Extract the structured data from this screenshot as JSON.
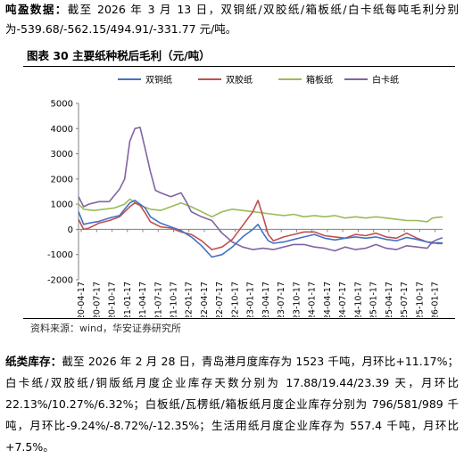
{
  "paragraph1": {
    "lead": "吨盈数据：",
    "body": "截至 2026 年 3 月 13 日，双铜纸/双胶纸/箱板纸/白卡纸每吨毛利分别为-539.68/-562.15/494.91/-331.77 元/吨。"
  },
  "figure_title": "图表 30 主要纸种税后毛利（元/吨）",
  "source_text": "资料来源：wind，华安证券研究所",
  "paragraph2": {
    "lead": "纸类库存：",
    "body": "截至 2026 年 2 月 28 日，青岛港月度库存为 1523 千吨，月环比+11.17%；白卡纸/双胶纸/铜版纸月度企业库存天数分别为 17.88/19.44/23.39 天，月环比 22.13%/10.27%/6.32%；白板纸/瓦楞纸/箱板纸月度企业库存分别为 796/581/989 千吨，月环比-9.24%/-8.72%/-12.35%；生活用纸月度企业库存为 557.4 千吨，月环比+7.5%。"
  },
  "chart_data": {
    "type": "line",
    "title": "",
    "xlabel": "",
    "ylabel": "",
    "ylim": [
      -2000,
      5000
    ],
    "yticks": [
      -2000,
      -1000,
      0,
      1000,
      2000,
      3000,
      4000,
      5000
    ],
    "xlim": [
      "2020-04",
      "2026-03"
    ],
    "xticks": [
      "2020-04-17",
      "2020-07-17",
      "2020-10-17",
      "2021-01-17",
      "2021-04-17",
      "2021-07-17",
      "2021-10-17",
      "2022-01-17",
      "2022-04-17",
      "2022-07-17",
      "2022-10-17",
      "2023-01-17",
      "2023-04-17",
      "2023-07-17",
      "2023-10-17",
      "2024-01-17",
      "2024-04-17",
      "2024-07-17",
      "2024-10-17",
      "2025-01-17",
      "2025-04-17",
      "2025-07-17",
      "2025-10-17",
      "2026-01-17"
    ],
    "legend_position": "top",
    "series": [
      {
        "name": "双铜纸",
        "color": "#4472C4",
        "x": [
          "2020-04",
          "2020-05",
          "2020-06",
          "2020-08",
          "2020-10",
          "2020-12",
          "2021-01",
          "2021-02",
          "2021-03",
          "2021-04",
          "2021-05",
          "2021-06",
          "2021-08",
          "2021-10",
          "2021-12",
          "2022-02",
          "2022-04",
          "2022-06",
          "2022-08",
          "2022-10",
          "2022-12",
          "2023-02",
          "2023-03",
          "2023-04",
          "2023-05",
          "2023-06",
          "2023-08",
          "2023-10",
          "2023-12",
          "2024-02",
          "2024-04",
          "2024-06",
          "2024-08",
          "2024-10",
          "2024-12",
          "2025-02",
          "2025-04",
          "2025-06",
          "2025-08",
          "2025-10",
          "2025-12",
          "2026-01",
          "2026-02",
          "2026-03"
        ],
        "y": [
          700,
          200,
          250,
          320,
          450,
          550,
          800,
          1050,
          1150,
          1000,
          850,
          500,
          250,
          100,
          -50,
          -300,
          -650,
          -1100,
          -1000,
          -700,
          -300,
          0,
          200,
          -150,
          -450,
          -550,
          -500,
          -400,
          -300,
          -200,
          -350,
          -420,
          -350,
          -300,
          -350,
          -300,
          -400,
          -450,
          -320,
          -400,
          -500,
          -550,
          -530,
          -540
        ]
      },
      {
        "name": "双胶纸",
        "color": "#C0504D",
        "x": [
          "2020-04",
          "2020-05",
          "2020-06",
          "2020-08",
          "2020-10",
          "2020-12",
          "2021-01",
          "2021-02",
          "2021-03",
          "2021-04",
          "2021-05",
          "2021-06",
          "2021-08",
          "2021-10",
          "2021-12",
          "2022-02",
          "2022-04",
          "2022-06",
          "2022-08",
          "2022-10",
          "2022-12",
          "2023-02",
          "2023-03",
          "2023-04",
          "2023-05",
          "2023-06",
          "2023-08",
          "2023-10",
          "2023-12",
          "2024-02",
          "2024-04",
          "2024-06",
          "2024-08",
          "2024-10",
          "2024-12",
          "2025-02",
          "2025-04",
          "2025-06",
          "2025-08",
          "2025-10",
          "2025-12",
          "2026-01",
          "2026-02",
          "2026-03"
        ],
        "y": [
          400,
          0,
          50,
          250,
          350,
          500,
          700,
          900,
          1050,
          950,
          650,
          300,
          100,
          50,
          -100,
          -200,
          -450,
          -800,
          -700,
          -400,
          150,
          700,
          1150,
          500,
          -200,
          -450,
          -300,
          -200,
          -100,
          -100,
          -250,
          -300,
          -350,
          -200,
          -250,
          -150,
          -300,
          -350,
          -150,
          -350,
          -500,
          -520,
          -560,
          -560
        ]
      },
      {
        "name": "箱板纸",
        "color": "#9BBB59",
        "x": [
          "2020-04",
          "2020-05",
          "2020-07",
          "2020-09",
          "2020-11",
          "2021-01",
          "2021-02",
          "2021-04",
          "2021-06",
          "2021-08",
          "2021-10",
          "2021-12",
          "2022-02",
          "2022-04",
          "2022-06",
          "2022-08",
          "2022-10",
          "2022-12",
          "2023-02",
          "2023-04",
          "2023-06",
          "2023-08",
          "2023-10",
          "2023-12",
          "2024-02",
          "2024-04",
          "2024-06",
          "2024-08",
          "2024-10",
          "2024-12",
          "2025-02",
          "2025-04",
          "2025-06",
          "2025-08",
          "2025-10",
          "2025-12",
          "2026-01",
          "2026-02",
          "2026-03"
        ],
        "y": [
          1000,
          800,
          750,
          800,
          850,
          1000,
          1200,
          950,
          800,
          750,
          900,
          1050,
          900,
          700,
          500,
          700,
          800,
          750,
          700,
          650,
          600,
          550,
          600,
          500,
          550,
          500,
          550,
          450,
          500,
          450,
          500,
          450,
          400,
          350,
          350,
          300,
          450,
          480,
          495
        ]
      },
      {
        "name": "白卡纸",
        "color": "#8064A2",
        "x": [
          "2020-04",
          "2020-05",
          "2020-06",
          "2020-08",
          "2020-10",
          "2020-12",
          "2021-01",
          "2021-02",
          "2021-03",
          "2021-04",
          "2021-05",
          "2021-06",
          "2021-07",
          "2021-08",
          "2021-10",
          "2021-12",
          "2022-01",
          "2022-02",
          "2022-04",
          "2022-06",
          "2022-08",
          "2022-10",
          "2022-12",
          "2023-02",
          "2023-04",
          "2023-06",
          "2023-08",
          "2023-10",
          "2023-12",
          "2024-02",
          "2024-04",
          "2024-06",
          "2024-08",
          "2024-10",
          "2024-12",
          "2025-02",
          "2025-04",
          "2025-06",
          "2025-08",
          "2025-10",
          "2025-12",
          "2026-01",
          "2026-02",
          "2026-03"
        ],
        "y": [
          1300,
          900,
          1000,
          1100,
          1100,
          1600,
          2000,
          3500,
          4000,
          4050,
          3200,
          2300,
          1550,
          1450,
          1300,
          1450,
          1100,
          700,
          500,
          350,
          -150,
          -500,
          -700,
          -800,
          -750,
          -800,
          -700,
          -600,
          -600,
          -700,
          -750,
          -850,
          -700,
          -800,
          -750,
          -600,
          -750,
          -800,
          -650,
          -700,
          -750,
          -500,
          -400,
          -330
        ]
      }
    ]
  }
}
